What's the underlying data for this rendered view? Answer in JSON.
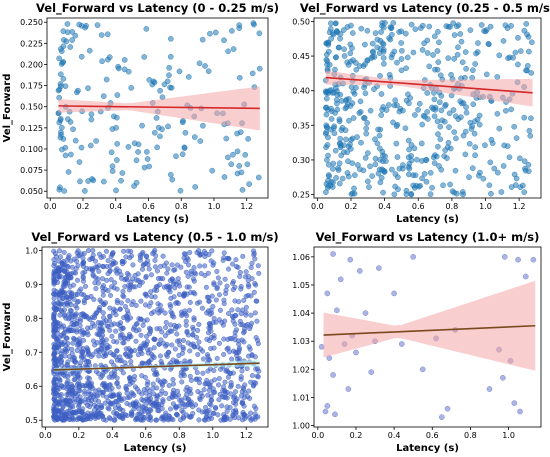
{
  "chart_data": [
    {
      "type": "scatter",
      "title": "Vel_Forward vs Latency (0 - 0.25 m/s)",
      "xlabel": "Latency (s)",
      "ylabel": "Vel_Forward",
      "xlim": [
        -0.02,
        1.33
      ],
      "ylim": [
        0.042,
        0.255
      ],
      "xticks": [
        "0.0",
        "0.2",
        "0.4",
        "0.6",
        "0.8",
        "1.0",
        "1.2"
      ],
      "yticks": [
        "0.050",
        "0.075",
        "0.100",
        "0.125",
        "0.150",
        "0.175",
        "0.200",
        "0.225",
        "0.250"
      ],
      "regression": {
        "x0": 0.05,
        "y0": 0.151,
        "x1": 1.28,
        "y1": 0.148,
        "ci_start": 0.008,
        "ci_mid": 0.004,
        "ci_end": 0.026
      },
      "point_count": 200,
      "x_range": [
        0.05,
        1.28
      ],
      "y_range": [
        0.05,
        0.25
      ],
      "colors": {
        "points": "#1f77b4",
        "line": "#d62728",
        "band": "#f4a6a6"
      }
    },
    {
      "type": "scatter",
      "title": "Vel_Forward vs Latency (0.25 - 0.5 m/s)",
      "xlabel": "Latency (s)",
      "ylabel": "",
      "xlim": [
        -0.02,
        1.33
      ],
      "ylim": [
        0.245,
        0.505
      ],
      "xticks": [
        "0.0",
        "0.2",
        "0.4",
        "0.6",
        "0.8",
        "1.0",
        "1.2"
      ],
      "yticks": [
        "0.25",
        "0.30",
        "0.35",
        "0.40",
        "0.45",
        "0.50"
      ],
      "regression": {
        "x0": 0.05,
        "y0": 0.419,
        "x1": 1.28,
        "y1": 0.397,
        "ci_start": 0.01,
        "ci_mid": 0.004,
        "ci_end": 0.02
      },
      "point_count": 550,
      "x_range": [
        0.05,
        1.28
      ],
      "y_range": [
        0.25,
        0.5
      ],
      "colors": {
        "points": "#1f77b4",
        "line": "#d62728",
        "band": "#f4a6a6"
      }
    },
    {
      "type": "scatter",
      "title": "Vel_Forward vs Latency (0.5 - 1.0 m/s)",
      "xlabel": "Latency (s)",
      "ylabel": "Vel_Forward",
      "xlim": [
        -0.02,
        1.33
      ],
      "ylim": [
        0.48,
        1.01
      ],
      "xticks": [
        "0.0",
        "0.2",
        "0.4",
        "0.6",
        "0.8",
        "1.0",
        "1.2"
      ],
      "yticks": [
        "0.5",
        "0.6",
        "0.7",
        "0.8",
        "0.9",
        "1.0"
      ],
      "regression": {
        "x0": 0.05,
        "y0": 0.648,
        "x1": 1.28,
        "y1": 0.668,
        "ci_start": 0.006,
        "ci_mid": 0.003,
        "ci_end": 0.01
      },
      "point_count": 1800,
      "x_range": [
        0.05,
        1.28
      ],
      "y_range": [
        0.5,
        1.0
      ],
      "colors": {
        "points": "#3d5fc2",
        "line": "#7a4a1e",
        "band": "#b0f0f0"
      }
    },
    {
      "type": "scatter",
      "title": "Vel_Forward vs Latency (1.0+ m/s)",
      "xlabel": "Latency (s)",
      "ylabel": "",
      "xlim": [
        -0.02,
        1.17
      ],
      "ylim": [
        0.9995,
        1.0635
      ],
      "xticks": [
        "0.0",
        "0.2",
        "0.4",
        "0.6",
        "0.8",
        "1.0"
      ],
      "yticks": [
        "1.00",
        "1.01",
        "1.02",
        "1.03",
        "1.04",
        "1.05",
        "1.06"
      ],
      "regression": {
        "x0": 0.03,
        "y0": 1.0322,
        "x1": 1.14,
        "y1": 1.0355,
        "ci_start": 0.008,
        "ci_mid": 0.002,
        "ci_end": 0.016
      },
      "points": [
        [
          0.08,
          1.061
        ],
        [
          0.17,
          1.059
        ],
        [
          0.32,
          1.056
        ],
        [
          0.5,
          1.06
        ],
        [
          0.98,
          1.06
        ],
        [
          1.05,
          1.059
        ],
        [
          1.13,
          1.059
        ],
        [
          0.12,
          1.052
        ],
        [
          0.22,
          1.055
        ],
        [
          0.05,
          1.047
        ],
        [
          0.4,
          1.047
        ],
        [
          1.09,
          1.053
        ],
        [
          0.1,
          1.041
        ],
        [
          0.25,
          1.04
        ],
        [
          0.18,
          1.032
        ],
        [
          0.14,
          1.029
        ],
        [
          0.3,
          1.03
        ],
        [
          0.44,
          1.029
        ],
        [
          0.62,
          1.031
        ],
        [
          0.72,
          1.034
        ],
        [
          0.95,
          1.027
        ],
        [
          0.02,
          1.028
        ],
        [
          0.06,
          1.024
        ],
        [
          0.2,
          1.026
        ],
        [
          0.08,
          1.018
        ],
        [
          0.28,
          1.019
        ],
        [
          0.55,
          1.02
        ],
        [
          0.97,
          1.017
        ],
        [
          1.01,
          1.023
        ],
        [
          0.16,
          1.013
        ],
        [
          0.9,
          1.013
        ],
        [
          1.03,
          1.008
        ],
        [
          0.05,
          1.007
        ],
        [
          0.68,
          1.006
        ],
        [
          0.04,
          1.005
        ],
        [
          0.09,
          1.004
        ],
        [
          0.65,
          1.003
        ],
        [
          1.06,
          1.005
        ]
      ],
      "colors": {
        "points": "#6677cc",
        "line": "#7a4a1e",
        "band": "#f4a6a6"
      }
    }
  ]
}
